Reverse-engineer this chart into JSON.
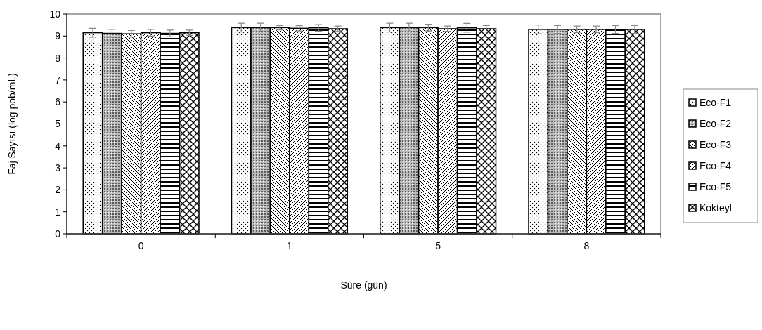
{
  "chart_data": {
    "type": "bar",
    "xlabel": "Süre (gün)",
    "ylabel": "Faj Sayısı (log pob/mL)",
    "categories": [
      "0",
      "1",
      "5",
      "8"
    ],
    "series": [
      {
        "name": "Eco-F1",
        "color": "#000000",
        "values": [
          9.15,
          9.38,
          9.38,
          9.3
        ],
        "errors": [
          0.2,
          0.2,
          0.2,
          0.2
        ]
      },
      {
        "name": "Eco-F2",
        "color": "#000000",
        "values": [
          9.12,
          9.38,
          9.38,
          9.3
        ],
        "errors": [
          0.18,
          0.2,
          0.2,
          0.18
        ]
      },
      {
        "name": "Eco-F3",
        "color": "#000000",
        "values": [
          9.1,
          9.38,
          9.38,
          9.3
        ],
        "errors": [
          0.15,
          0.1,
          0.15,
          0.15
        ]
      },
      {
        "name": "Eco-F4",
        "color": "#000000",
        "values": [
          9.15,
          9.35,
          9.33,
          9.3
        ],
        "errors": [
          0.15,
          0.12,
          0.12,
          0.15
        ]
      },
      {
        "name": "Eco-F5",
        "color": "#000000",
        "values": [
          9.12,
          9.37,
          9.37,
          9.3
        ],
        "errors": [
          0.15,
          0.15,
          0.2,
          0.18
        ]
      },
      {
        "name": "Kokteyl",
        "color": "#000000",
        "values": [
          9.15,
          9.33,
          9.33,
          9.3
        ],
        "errors": [
          0.12,
          0.12,
          0.15,
          0.18
        ]
      }
    ],
    "ylim": [
      0,
      10
    ],
    "yticks": [
      0,
      1,
      2,
      3,
      4,
      5,
      6,
      7,
      8,
      9,
      10
    ],
    "grid": false,
    "legend": "right"
  }
}
